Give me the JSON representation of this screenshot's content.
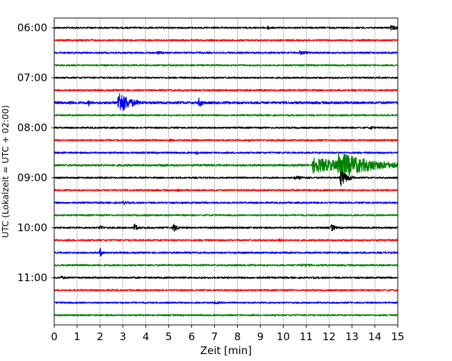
{
  "chart_data": {
    "type": "line",
    "subtype": "helicorder",
    "xlabel": "Zeit  [min]",
    "ylabel": "UTC (Lokalzeit = UTC + 02:00)",
    "xlim": [
      0,
      15
    ],
    "x_ticks": [
      0,
      1,
      2,
      3,
      4,
      5,
      6,
      7,
      8,
      9,
      10,
      11,
      12,
      13,
      14,
      15
    ],
    "x_tick_labels": [
      "0",
      "1",
      "2",
      "3",
      "4",
      "5",
      "6",
      "7",
      "8",
      "9",
      "10",
      "11",
      "12",
      "13",
      "14",
      "15"
    ],
    "y_tick_labels": [
      "06:00",
      "07:00",
      "08:00",
      "09:00",
      "10:00",
      "11:00"
    ],
    "grid": {
      "x": "dotted",
      "y": false
    },
    "colors": [
      "#000000",
      "#ff0000",
      "#0000ff",
      "#008000"
    ],
    "line_start_times": [
      "06:00",
      "06:15",
      "06:30",
      "06:45",
      "07:00",
      "07:15",
      "07:30",
      "07:45",
      "08:00",
      "08:15",
      "08:30",
      "08:45",
      "09:00",
      "09:15",
      "09:30",
      "09:45",
      "10:00",
      "10:15",
      "10:30",
      "10:45",
      "11:00",
      "11:15",
      "11:30",
      "11:45"
    ],
    "traces": [
      {
        "start": "06:00",
        "color": "#000000",
        "noise": 1.2,
        "events": [
          {
            "t": 9.3,
            "amp": 3,
            "dur": 0.3
          },
          {
            "t": 14.7,
            "amp": 4,
            "dur": 0.4
          }
        ]
      },
      {
        "start": "06:15",
        "color": "#ff0000",
        "noise": 1.3,
        "events": []
      },
      {
        "start": "06:30",
        "color": "#0000ff",
        "noise": 1.3,
        "events": [
          {
            "t": 4.5,
            "amp": 2.5,
            "dur": 0.5
          },
          {
            "t": 10.7,
            "amp": 3,
            "dur": 0.8
          }
        ]
      },
      {
        "start": "06:45",
        "color": "#008000",
        "noise": 1.2,
        "events": []
      },
      {
        "start": "07:00",
        "color": "#000000",
        "noise": 1.2,
        "events": []
      },
      {
        "start": "07:15",
        "color": "#ff0000",
        "noise": 1.3,
        "events": []
      },
      {
        "start": "07:30",
        "color": "#0000ff",
        "noise": 1.8,
        "events": [
          {
            "t": 0.7,
            "amp": 5,
            "dur": 0.1
          },
          {
            "t": 1.5,
            "amp": 5,
            "dur": 0.1
          },
          {
            "t": 2.8,
            "amp": 18,
            "dur": 0.5
          },
          {
            "t": 6.3,
            "amp": 8,
            "dur": 0.2
          }
        ]
      },
      {
        "start": "07:45",
        "color": "#008000",
        "noise": 1.2,
        "events": []
      },
      {
        "start": "08:00",
        "color": "#000000",
        "noise": 1.2,
        "events": [
          {
            "t": 13.8,
            "amp": 3,
            "dur": 0.3
          }
        ]
      },
      {
        "start": "08:15",
        "color": "#ff0000",
        "noise": 1.3,
        "events": [
          {
            "t": 5,
            "amp": 3,
            "dur": 0.3
          },
          {
            "t": 8.5,
            "amp": 2.5,
            "dur": 0.3
          }
        ]
      },
      {
        "start": "08:30",
        "color": "#0000ff",
        "noise": 1.3,
        "events": [
          {
            "t": 6.2,
            "amp": 4,
            "dur": 0.1
          }
        ]
      },
      {
        "start": "08:45",
        "color": "#008000",
        "noise": 1.5,
        "events": [
          {
            "t": 4.8,
            "amp": 2.5,
            "dur": 0.4
          },
          {
            "t": 11.3,
            "amp": 12,
            "dur": 1.8
          },
          {
            "t": 12.4,
            "amp": 20,
            "dur": 1.5
          }
        ]
      },
      {
        "start": "09:00",
        "color": "#000000",
        "noise": 1.2,
        "events": [
          {
            "t": 12.5,
            "amp": 14,
            "dur": 0.3
          },
          {
            "t": 10.5,
            "amp": 3,
            "dur": 0.8
          }
        ]
      },
      {
        "start": "09:15",
        "color": "#ff0000",
        "noise": 1.3,
        "events": [
          {
            "t": 5.4,
            "amp": 2.5,
            "dur": 0.3
          }
        ]
      },
      {
        "start": "09:30",
        "color": "#0000ff",
        "noise": 1.3,
        "events": [
          {
            "t": 3,
            "amp": 3,
            "dur": 0.4
          }
        ]
      },
      {
        "start": "09:45",
        "color": "#008000",
        "noise": 1.2,
        "events": []
      },
      {
        "start": "10:00",
        "color": "#000000",
        "noise": 1.3,
        "events": [
          {
            "t": 2,
            "amp": 4,
            "dur": 0.2
          },
          {
            "t": 3.5,
            "amp": 6,
            "dur": 0.2
          },
          {
            "t": 5.2,
            "amp": 7,
            "dur": 0.2
          },
          {
            "t": 12.1,
            "amp": 6,
            "dur": 0.2
          }
        ]
      },
      {
        "start": "10:15",
        "color": "#ff0000",
        "noise": 1.3,
        "events": [
          {
            "t": 9.8,
            "amp": 3,
            "dur": 0.3
          }
        ]
      },
      {
        "start": "10:30",
        "color": "#0000ff",
        "noise": 1.3,
        "events": [
          {
            "t": 2,
            "amp": 8,
            "dur": 0.1
          }
        ]
      },
      {
        "start": "10:45",
        "color": "#008000",
        "noise": 1.3,
        "events": [
          {
            "t": 10.8,
            "amp": 2.5,
            "dur": 0.8
          }
        ]
      },
      {
        "start": "11:00",
        "color": "#000000",
        "noise": 1.3,
        "events": [
          {
            "t": 0.3,
            "amp": 3,
            "dur": 0.3
          }
        ]
      },
      {
        "start": "11:15",
        "color": "#ff0000",
        "noise": 1.2,
        "events": []
      },
      {
        "start": "11:30",
        "color": "#0000ff",
        "noise": 1.2,
        "events": [
          {
            "t": 7,
            "amp": 2.5,
            "dur": 0.4
          }
        ]
      },
      {
        "start": "11:45",
        "color": "#008000",
        "noise": 1.2,
        "events": []
      }
    ]
  }
}
